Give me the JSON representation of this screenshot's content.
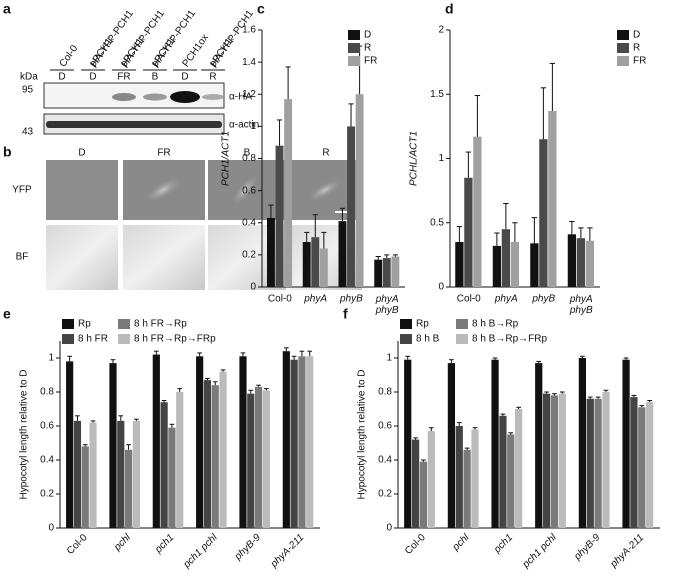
{
  "panels": {
    "a": {
      "letter": "a",
      "kda": "kDa",
      "markers": [
        "95",
        "43"
      ],
      "antibodies": [
        "α-HA",
        "α-actin"
      ],
      "lanes": [
        {
          "label": [
            "Col-0"
          ],
          "condition": "D"
        },
        {
          "label": [
            "pPCH1:",
            "HA-YFP-PCH1"
          ],
          "condition": "D"
        },
        {
          "label": [
            "pPCH1:",
            "HA-YFP-PCH1"
          ],
          "condition": "FR"
        },
        {
          "label": [
            "pPCH1:",
            "HA-YFP-PCH1"
          ],
          "condition": "B"
        },
        {
          "label": [
            "PCH1ox"
          ],
          "condition": "D"
        },
        {
          "label": [
            "pPCH1:",
            "HA-YFP-PCH1"
          ],
          "condition": "R"
        }
      ]
    },
    "b": {
      "letter": "b",
      "conditions": [
        "D",
        "FR",
        "B",
        "R"
      ],
      "rows": [
        "YFP",
        "BF"
      ]
    }
  },
  "chart_data": [
    {
      "type": "bar",
      "panel": "c",
      "y_label": "PCH1/ACT1",
      "y_label_italic": true,
      "x_label_rotation": 0,
      "categories": [
        "Col-0",
        "phyA",
        "phyB",
        "phyA phyB"
      ],
      "series": [
        {
          "name": "D",
          "color": "#111111",
          "values": [
            0.43,
            0.28,
            0.41,
            0.17
          ],
          "errors": [
            0.08,
            0.06,
            0.08,
            0.02
          ]
        },
        {
          "name": "R",
          "color": "#4a4a4a",
          "values": [
            0.88,
            0.31,
            1.0,
            0.18
          ],
          "errors": [
            0.16,
            0.14,
            0.14,
            0.02
          ]
        },
        {
          "name": "FR",
          "color": "#a0a0a0",
          "values": [
            1.17,
            0.24,
            1.2,
            0.19
          ],
          "errors": [
            0.2,
            0.1,
            0.3,
            0.01
          ]
        }
      ],
      "ylim": [
        0,
        1.6
      ],
      "yticks": [
        0,
        0.2,
        0.4,
        0.6,
        0.8,
        1,
        1.2,
        1.4,
        1.6
      ]
    },
    {
      "type": "bar",
      "panel": "d",
      "y_label": "PCHL/ACT1",
      "y_label_italic": true,
      "x_label_rotation": 0,
      "categories": [
        "Col-0",
        "phyA",
        "phyB",
        "phyA phyB"
      ],
      "series": [
        {
          "name": "D",
          "color": "#111111",
          "values": [
            0.35,
            0.32,
            0.34,
            0.41
          ],
          "errors": [
            0.12,
            0.1,
            0.2,
            0.1
          ]
        },
        {
          "name": "R",
          "color": "#4a4a4a",
          "values": [
            0.85,
            0.45,
            1.15,
            0.38
          ],
          "errors": [
            0.2,
            0.2,
            0.4,
            0.08
          ]
        },
        {
          "name": "FR",
          "color": "#a0a0a0",
          "values": [
            1.17,
            0.35,
            1.37,
            0.36
          ],
          "errors": [
            0.32,
            0.15,
            0.37,
            0.1
          ]
        }
      ],
      "ylim": [
        0,
        2
      ],
      "yticks": [
        0,
        0.5,
        1,
        1.5,
        2
      ]
    },
    {
      "type": "bar",
      "panel": "e",
      "y_label": "Hypocotyl length relative to D",
      "y_label_italic": false,
      "x_label_rotation": 45,
      "categories": [
        "Col-0",
        "pchl",
        "pch1",
        "pch1 pchl",
        "phyB-9",
        "phyA-211"
      ],
      "series": [
        {
          "name": "Rp",
          "color": "#111111",
          "values": [
            0.98,
            0.97,
            1.02,
            1.01,
            1.01,
            1.04
          ],
          "errors": [
            0.03,
            0.02,
            0.02,
            0.02,
            0.02,
            0.02
          ]
        },
        {
          "name": "8 h FR",
          "color": "#444444",
          "values": [
            0.63,
            0.63,
            0.74,
            0.87,
            0.79,
            0.99
          ],
          "errors": [
            0.03,
            0.03,
            0.01,
            0.01,
            0.02,
            0.02
          ]
        },
        {
          "name": "8 h FR→Rp",
          "color": "#7a7a7a",
          "values": [
            0.48,
            0.46,
            0.59,
            0.84,
            0.83,
            1.01
          ],
          "errors": [
            0.01,
            0.03,
            0.02,
            0.02,
            0.01,
            0.03
          ]
        },
        {
          "name": "8 h FR→Rp→FRp",
          "color": "#bbbbbb",
          "values": [
            0.62,
            0.63,
            0.8,
            0.92,
            0.81,
            1.01
          ],
          "errors": [
            0.01,
            0.01,
            0.02,
            0.01,
            0.01,
            0.03
          ]
        }
      ],
      "ylim": [
        0,
        1.1
      ],
      "yticks": [
        0,
        0.2,
        0.4,
        0.6,
        0.8,
        1
      ]
    },
    {
      "type": "bar",
      "panel": "f",
      "y_label": "Hypocotyl length relative to D",
      "y_label_italic": false,
      "x_label_rotation": 45,
      "categories": [
        "Col-0",
        "pchl",
        "pch1",
        "pch1 pchl",
        "phyB-9",
        "phyA-211"
      ],
      "series": [
        {
          "name": "Rp",
          "color": "#111111",
          "values": [
            0.99,
            0.97,
            0.99,
            0.97,
            1.0,
            0.99
          ],
          "errors": [
            0.02,
            0.02,
            0.01,
            0.01,
            0.01,
            0.01
          ]
        },
        {
          "name": "8 h B",
          "color": "#444444",
          "values": [
            0.52,
            0.6,
            0.66,
            0.79,
            0.76,
            0.77
          ],
          "errors": [
            0.01,
            0.02,
            0.01,
            0.01,
            0.01,
            0.01
          ]
        },
        {
          "name": "8 h B→Rp",
          "color": "#7a7a7a",
          "values": [
            0.39,
            0.46,
            0.55,
            0.78,
            0.76,
            0.71
          ],
          "errors": [
            0.01,
            0.01,
            0.01,
            0.01,
            0.01,
            0.01
          ]
        },
        {
          "name": "8 h B→Rp→FRp",
          "color": "#bbbbbb",
          "values": [
            0.57,
            0.58,
            0.7,
            0.79,
            0.8,
            0.74
          ],
          "errors": [
            0.02,
            0.01,
            0.01,
            0.01,
            0.01,
            0.01
          ]
        }
      ],
      "ylim": [
        0,
        1.1
      ],
      "yticks": [
        0,
        0.2,
        0.4,
        0.6,
        0.8,
        1
      ]
    }
  ]
}
